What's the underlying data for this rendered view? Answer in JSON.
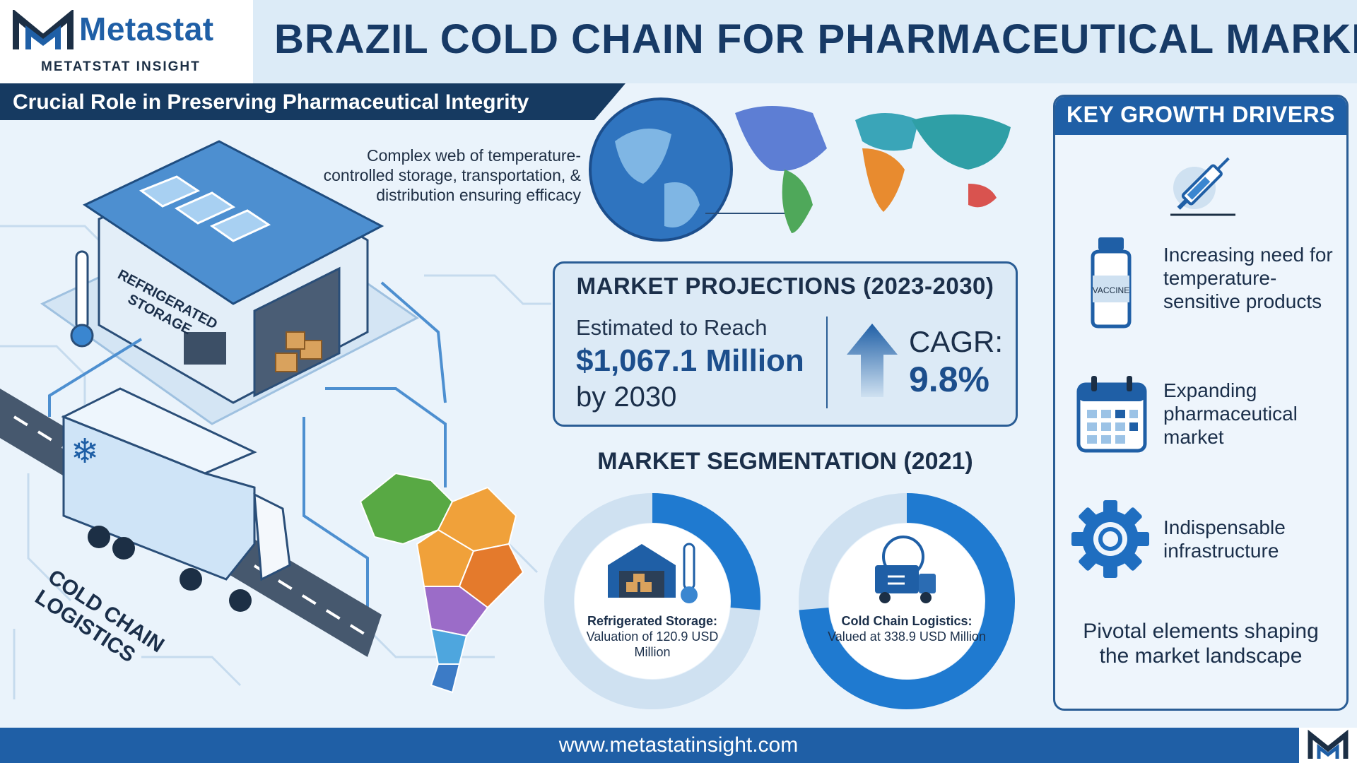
{
  "header": {
    "logo_brand": "Metastat",
    "logo_sub": "METATSTAT INSIGHT",
    "title": "BRAZIL COLD CHAIN FOR PHARMACEUTICAL MARKET"
  },
  "banner": {
    "subtitle": "Crucial Role in Preserving Pharmaceutical Integrity"
  },
  "illustration": {
    "storage_label": "REFRIGERATED STORAGE",
    "road_label": "COLD CHAIN LOGISTICS",
    "description": "Complex web of temperature-controlled storage, transportation, & distribution ensuring efficacy"
  },
  "projections": {
    "title": "MARKET PROJECTIONS (2023-2030)",
    "label": "Estimated to Reach",
    "value": "$1,067.1 Million",
    "year": "by 2030",
    "cagr_label": "CAGR:",
    "cagr_value": "9.8%"
  },
  "segmentation": {
    "title": "MARKET SEGMENTATION (2021)",
    "items": [
      {
        "name": "Refrigerated Storage:",
        "detail": "Valuation of 120.9 USD Million",
        "share": 0.263
      },
      {
        "name": "Cold Chain Logistics:",
        "detail": "Valued at 338.9 USD Million",
        "share": 0.737
      }
    ]
  },
  "drivers": {
    "title": "KEY GROWTH DRIVERS",
    "items": [
      {
        "icon": "syringe-icon",
        "text": ""
      },
      {
        "icon": "vaccine-vial-icon",
        "text": "Increasing need for temperature-sensitive products",
        "vial_label": "VACCINE"
      },
      {
        "icon": "calendar-icon",
        "text": "Expanding pharmaceutical market"
      },
      {
        "icon": "gear-icon",
        "text": "Indispensable infrastructure"
      }
    ],
    "footer": "Pivotal elements shaping the market landscape"
  },
  "footer": {
    "url": "www.metastatinsight.com"
  },
  "colors": {
    "primary": "#1f5fa6",
    "dark": "#163a61",
    "light_ring": "#cfe1f1",
    "background": "#eaf3fb"
  }
}
